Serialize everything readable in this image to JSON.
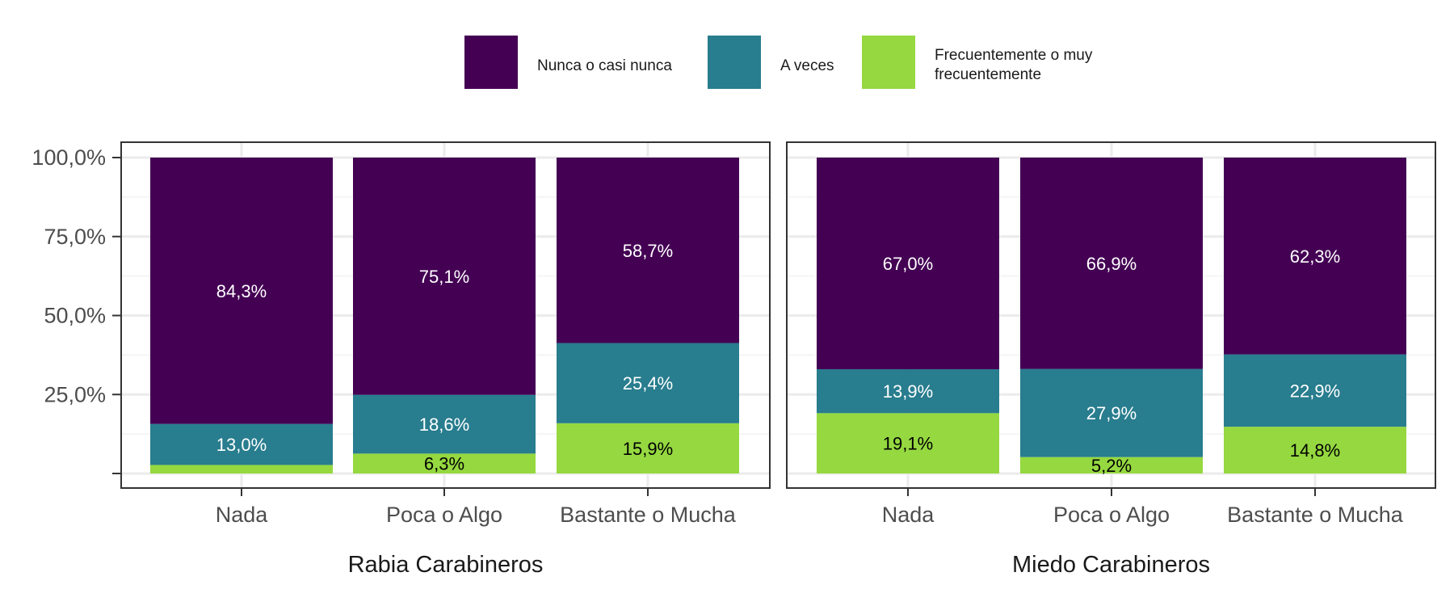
{
  "chart_data": {
    "type": "bar",
    "stacked": true,
    "y_axis": {
      "ticks": [
        "100,0%",
        "75,0%",
        "50,0%",
        "25,0%",
        ""
      ],
      "range": [
        0,
        100
      ],
      "unit": "%"
    },
    "categories": [
      "Nada",
      "Poca o Algo",
      "Bastante o Mucha"
    ],
    "legend": {
      "position": "top",
      "items": [
        {
          "key": "nunca",
          "label": "Nunca o casi nunca",
          "color": "#440154"
        },
        {
          "key": "aveces",
          "label": "A veces",
          "color": "#287D8E"
        },
        {
          "key": "frec",
          "label": "Frecuentemente o muy frecuentemente",
          "color": "#95D840"
        }
      ]
    },
    "panels": [
      {
        "title": "Rabia Carabineros",
        "series": [
          {
            "name": "Frecuentemente o muy frecuentemente",
            "values": [
              2.7,
              6.3,
              15.9
            ],
            "labels": [
              "",
              "6,3%",
              "15,9%"
            ]
          },
          {
            "name": "A veces",
            "values": [
              13.0,
              18.6,
              25.4
            ],
            "labels": [
              "13,0%",
              "18,6%",
              "25,4%"
            ]
          },
          {
            "name": "Nunca o casi nunca",
            "values": [
              84.3,
              75.1,
              58.7
            ],
            "labels": [
              "84,3%",
              "75,1%",
              "58,7%"
            ]
          }
        ]
      },
      {
        "title": "Miedo Carabineros",
        "series": [
          {
            "name": "Frecuentemente o muy frecuentemente",
            "values": [
              19.1,
              5.2,
              14.8
            ],
            "labels": [
              "19,1%",
              "5,2%",
              "14,8%"
            ]
          },
          {
            "name": "A veces",
            "values": [
              13.9,
              27.9,
              22.9
            ],
            "labels": [
              "13,9%",
              "27,9%",
              "22,9%"
            ]
          },
          {
            "name": "Nunca o casi nunca",
            "values": [
              67.0,
              66.9,
              62.3
            ],
            "labels": [
              "67,0%",
              "66,9%",
              "62,3%"
            ]
          }
        ]
      }
    ]
  }
}
